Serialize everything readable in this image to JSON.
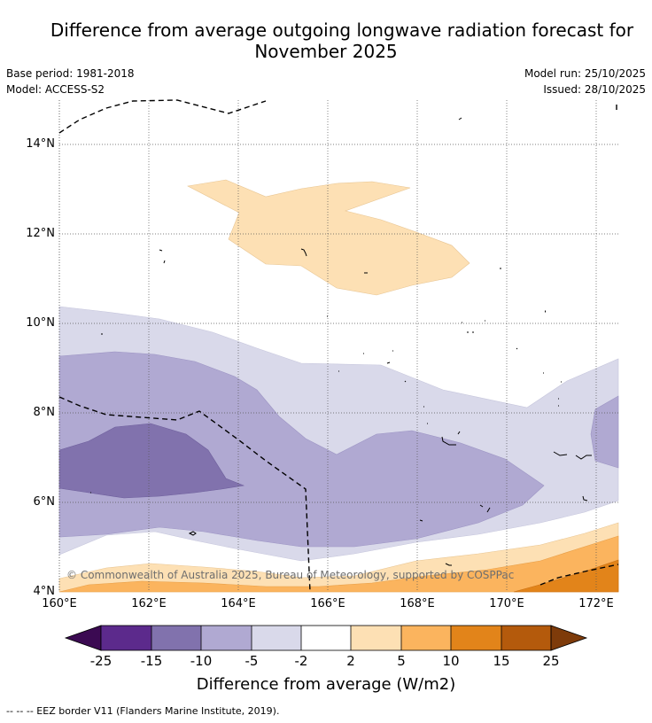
{
  "header": {
    "title_line1": "Difference from average outgoing longwave radiation forecast for",
    "title_line2": "November 2025",
    "base_period": "Base period: 1981-2018",
    "model": "Model: ACCESS-S2",
    "model_run": "Model run: 25/10/2025",
    "issued": "Issued: 28/10/2025"
  },
  "map": {
    "lat_ticks": [
      "14°N",
      "12°N",
      "10°N",
      "8°N",
      "6°N",
      "4°N"
    ],
    "lon_ticks": [
      "160°E",
      "162°E",
      "164°E",
      "166°E",
      "168°E",
      "170°E",
      "172°E"
    ],
    "extent": {
      "lon_min": 160,
      "lon_max": 172.5,
      "lat_min": 4,
      "lat_max": 15.1
    },
    "copyright": "© Commonwealth of Australia 2025, Bureau of Meteorology, supported by COSPPac"
  },
  "colorbar": {
    "title": "Difference from average (W/m2)",
    "labels": [
      "-25",
      "-15",
      "-10",
      "-5",
      "-2",
      "2",
      "5",
      "10",
      "15",
      "25"
    ],
    "colors": {
      "below_-25": "#3b0a52",
      "-25_-15": "#5c2a8c",
      "-15_-10": "#8172ad",
      "-10_-5": "#b0a9d2",
      "-5_-2": "#d9d9ea",
      "-2_2": "#ffffff",
      "2_5": "#fde0b4",
      "5_10": "#fbb45e",
      "10_15": "#e2841a",
      "15_25": "#b45a0c",
      "above_25": "#7e3b0a"
    }
  },
  "footer": {
    "legend_line": "-- -- -- EEZ border V11 (Flanders Marine Institute, 2019)."
  }
}
